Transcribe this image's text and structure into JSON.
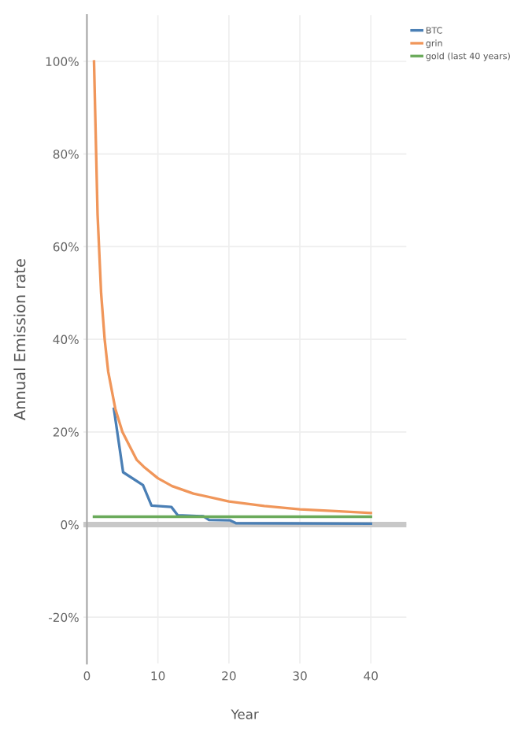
{
  "chart_data": {
    "type": "line",
    "xlabel": "Year",
    "ylabel": "Annual Emission rate",
    "xlim": [
      -0.5,
      45
    ],
    "ylim": [
      -30,
      110
    ],
    "xticks": [
      0,
      10,
      20,
      30,
      40
    ],
    "yticks": [
      {
        "value": -20,
        "label": "-20%"
      },
      {
        "value": 0,
        "label": "0%"
      },
      {
        "value": 20,
        "label": "20%"
      },
      {
        "value": 40,
        "label": "40%"
      },
      {
        "value": 60,
        "label": "60%"
      },
      {
        "value": 80,
        "label": "80%"
      },
      {
        "value": 100,
        "label": "100%"
      }
    ],
    "grid": true,
    "legend": "top right",
    "marker": "none",
    "line_style": "solid",
    "ref_lines": [
      {
        "axis": "y",
        "value": 0,
        "color": "#c8c8c8"
      }
    ],
    "series": [
      {
        "name": "BTC",
        "color": "#4a7fb5",
        "x": [
          3.8,
          5.1,
          7.9,
          9.1,
          11.9,
          12.8,
          16.4,
          17.2,
          20.2,
          21,
          40
        ],
        "values": [
          25,
          11.3,
          8.5,
          4.1,
          3.8,
          2,
          1.8,
          1,
          0.9,
          0.3,
          0.2
        ]
      },
      {
        "name": "grin",
        "color": "#f0965a",
        "x": [
          1,
          1.5,
          2,
          2.5,
          3,
          4,
          5,
          6,
          7,
          8,
          10,
          12,
          15,
          20,
          25,
          30,
          35,
          40
        ],
        "values": [
          100,
          67,
          50,
          40,
          33,
          25,
          20,
          17,
          14,
          12.5,
          10,
          8.3,
          6.7,
          5,
          4,
          3.3,
          2.9,
          2.5
        ]
      },
      {
        "name": "gold (last 40 years)",
        "color": "#6aaa5a",
        "x": [
          1,
          40
        ],
        "values": [
          1.7,
          1.7
        ]
      }
    ]
  }
}
